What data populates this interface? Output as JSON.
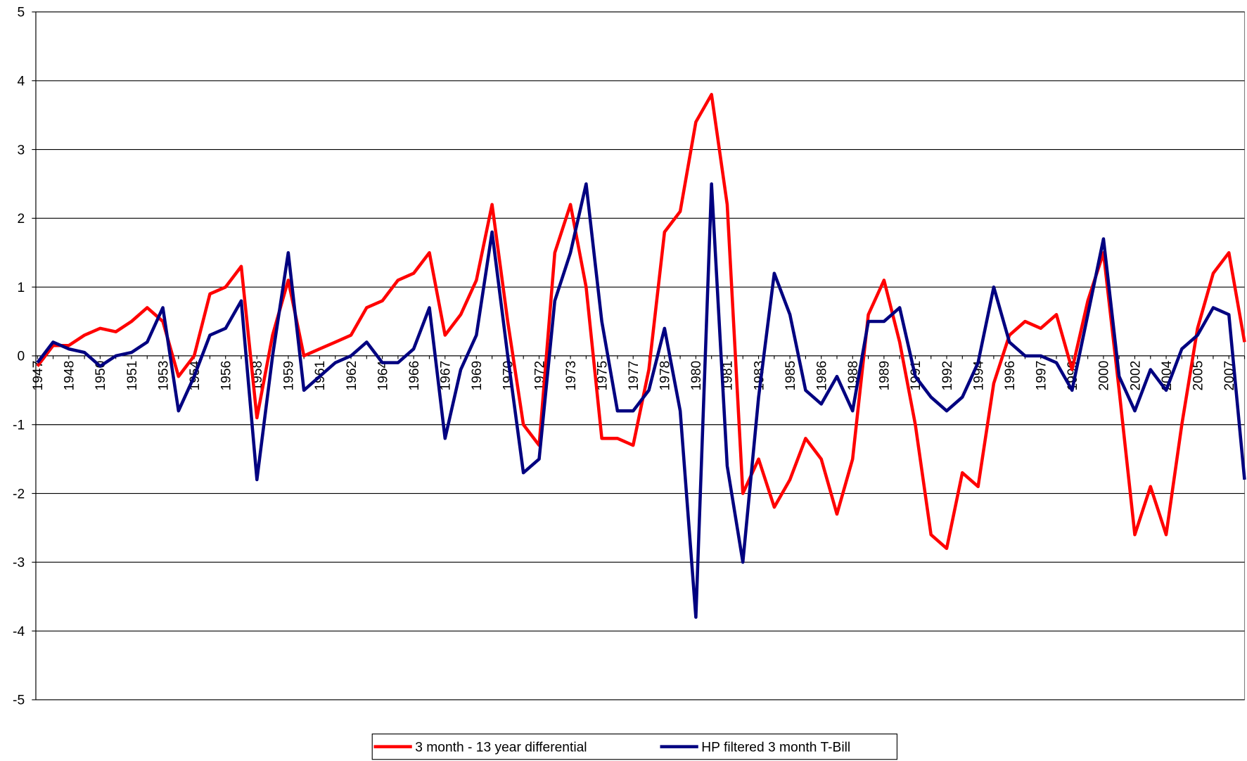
{
  "chart_data": {
    "type": "line",
    "categories": [
      "1947",
      null,
      "1948",
      null,
      "1950",
      null,
      "1951",
      null,
      "1953",
      null,
      "1954",
      null,
      "1956",
      null,
      "1958",
      null,
      "1959",
      null,
      "1961",
      null,
      "1962",
      null,
      "1964",
      null,
      "1966",
      null,
      "1967",
      null,
      "1969",
      null,
      "1970",
      null,
      "1972",
      null,
      "1973",
      null,
      "1975",
      null,
      "1977",
      null,
      "1978",
      null,
      "1980",
      null,
      "1981",
      null,
      "1983",
      null,
      "1985",
      null,
      "1986",
      null,
      "1988",
      null,
      "1989",
      null,
      "1991",
      null,
      "1992",
      null,
      "1994",
      null,
      "1996",
      null,
      "1997",
      null,
      "1999",
      null,
      "2000",
      null,
      "2002",
      null,
      "2004",
      null,
      "2005",
      null,
      "2007",
      null
    ],
    "series": [
      {
        "name": "3 month - 13 year differential",
        "color": "#ff0000",
        "values": [
          -0.15,
          0.15,
          0.15,
          0.3,
          0.4,
          0.35,
          0.5,
          0.7,
          0.5,
          -0.3,
          0.0,
          0.9,
          1.0,
          1.3,
          -0.9,
          0.3,
          1.1,
          0.0,
          0.1,
          0.2,
          0.3,
          0.7,
          0.8,
          1.1,
          1.2,
          1.5,
          0.3,
          0.6,
          1.1,
          2.2,
          0.5,
          -1.0,
          -1.3,
          1.5,
          2.2,
          1.0,
          -1.2,
          -1.2,
          -1.3,
          -0.2,
          1.8,
          2.1,
          3.4,
          3.8,
          2.2,
          -2.0,
          -1.5,
          -2.2,
          -1.8,
          -1.2,
          -1.5,
          -2.3,
          -1.5,
          0.6,
          1.1,
          0.2,
          -1.0,
          -2.6,
          -2.8,
          -1.7,
          -1.9,
          -0.4,
          0.3,
          0.5,
          0.4,
          0.6,
          -0.2,
          0.8,
          1.5,
          -0.5,
          -2.6,
          -1.9,
          -2.6,
          -1.0,
          0.4,
          1.2,
          1.5,
          0.2
        ]
      },
      {
        "name": "HP filtered 3 month T-Bill",
        "color": "#000080",
        "values": [
          -0.1,
          0.2,
          0.1,
          0.05,
          -0.15,
          0.0,
          0.05,
          0.2,
          0.7,
          -0.8,
          -0.3,
          0.3,
          0.4,
          0.8,
          -1.8,
          0.0,
          1.5,
          -0.5,
          -0.3,
          -0.1,
          0.0,
          0.2,
          -0.1,
          -0.1,
          0.1,
          0.7,
          -1.2,
          -0.2,
          0.3,
          1.8,
          0.0,
          -1.7,
          -1.5,
          0.8,
          1.5,
          2.5,
          0.5,
          -0.8,
          -0.8,
          -0.5,
          0.4,
          -0.8,
          -3.8,
          2.5,
          -1.6,
          -3.0,
          -0.6,
          1.2,
          0.6,
          -0.5,
          -0.7,
          -0.3,
          -0.8,
          0.5,
          0.5,
          0.7,
          -0.3,
          -0.6,
          -0.8,
          -0.6,
          -0.1,
          1.0,
          0.2,
          0.0,
          0.0,
          -0.1,
          -0.5,
          0.6,
          1.7,
          -0.3,
          -0.8,
          -0.2,
          -0.5,
          0.1,
          0.3,
          0.7,
          0.6,
          -1.8
        ]
      }
    ],
    "ylim": [
      -5,
      5
    ],
    "yticks": [
      -5,
      -4,
      -3,
      -2,
      -1,
      0,
      1,
      2,
      3,
      4,
      5
    ],
    "grid": true,
    "legend": "bottom"
  }
}
